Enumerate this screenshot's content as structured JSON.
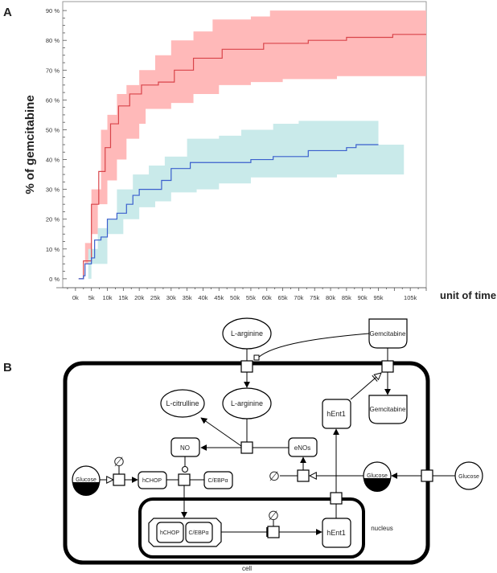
{
  "panels": {
    "a": "A",
    "b": "B"
  },
  "chart_data": {
    "type": "line",
    "title": "",
    "xlabel": "unit of time",
    "ylabel": "% of gemcitabine",
    "xlim": [
      -4,
      110
    ],
    "ylim": [
      -3,
      93
    ],
    "x_unit": "k",
    "xticks": [
      0,
      5,
      10,
      15,
      20,
      25,
      30,
      35,
      40,
      45,
      50,
      55,
      60,
      65,
      70,
      75,
      80,
      85,
      90,
      95,
      105
    ],
    "xtick_labels": [
      "0k",
      "5k",
      "10k",
      "15k",
      "20k",
      "25k",
      "30k",
      "35k",
      "40k",
      "45k",
      "50k",
      "55k",
      "60k",
      "65k",
      "70k",
      "75k",
      "80k",
      "85k",
      "90k",
      "95k",
      "105k"
    ],
    "yticks": [
      0,
      10,
      20,
      30,
      40,
      50,
      60,
      70,
      80,
      90
    ],
    "ytick_labels": [
      "0 %",
      "10 %",
      "20 %",
      "30 %",
      "40 %",
      "50 %",
      "60 %",
      "70 %",
      "80 %",
      "90 %"
    ],
    "grid": false,
    "series": [
      {
        "name": "red",
        "line_color": "#d9444a",
        "band_color": "#ffb9b9",
        "median": [
          [
            1,
            0
          ],
          [
            2.5,
            6
          ],
          [
            5,
            25
          ],
          [
            7.3,
            36
          ],
          [
            9.3,
            44
          ],
          [
            11,
            52
          ],
          [
            13.5,
            58
          ],
          [
            17,
            62
          ],
          [
            20.7,
            65
          ],
          [
            26,
            66
          ],
          [
            31,
            70
          ],
          [
            37,
            74
          ],
          [
            46,
            77
          ],
          [
            59,
            79
          ],
          [
            73,
            80
          ],
          [
            85,
            81
          ],
          [
            99.5,
            82
          ],
          [
            110,
            82
          ]
        ],
        "upper": [
          [
            1,
            0
          ],
          [
            3,
            12
          ],
          [
            5,
            30
          ],
          [
            8,
            50
          ],
          [
            10,
            55
          ],
          [
            13,
            62
          ],
          [
            16,
            65
          ],
          [
            20,
            70
          ],
          [
            25,
            75
          ],
          [
            30,
            80
          ],
          [
            37,
            83
          ],
          [
            43,
            87
          ],
          [
            55,
            88
          ],
          [
            61,
            90
          ],
          [
            103,
            90
          ],
          [
            110,
            88
          ]
        ],
        "lower": [
          [
            1,
            0
          ],
          [
            3,
            5
          ],
          [
            5,
            15
          ],
          [
            7,
            25
          ],
          [
            10,
            33
          ],
          [
            13,
            40
          ],
          [
            16,
            47
          ],
          [
            20,
            52
          ],
          [
            22,
            57
          ],
          [
            30,
            59
          ],
          [
            37,
            62
          ],
          [
            45,
            65
          ],
          [
            55,
            66
          ],
          [
            65,
            67
          ],
          [
            82,
            68
          ],
          [
            110,
            68
          ]
        ]
      },
      {
        "name": "blue",
        "line_color": "#3a5fcd",
        "band_color": "#c9eaea",
        "median": [
          [
            1,
            0
          ],
          [
            2.5,
            1
          ],
          [
            3,
            5
          ],
          [
            5,
            7
          ],
          [
            6,
            13
          ],
          [
            8,
            14
          ],
          [
            10,
            20
          ],
          [
            13,
            22
          ],
          [
            16,
            25
          ],
          [
            18,
            28
          ],
          [
            20,
            30
          ],
          [
            25,
            30
          ],
          [
            27,
            33
          ],
          [
            30,
            37
          ],
          [
            36,
            39
          ],
          [
            50,
            39
          ],
          [
            55,
            40
          ],
          [
            62,
            41
          ],
          [
            73,
            43
          ],
          [
            85,
            44
          ],
          [
            88,
            45
          ],
          [
            95,
            45
          ]
        ],
        "upper": [
          [
            1,
            0
          ],
          [
            4,
            10
          ],
          [
            7,
            17
          ],
          [
            10,
            20
          ],
          [
            13,
            30
          ],
          [
            18,
            35
          ],
          [
            23,
            38
          ],
          [
            28,
            41
          ],
          [
            35,
            47
          ],
          [
            45,
            48
          ],
          [
            52,
            50
          ],
          [
            62,
            52
          ],
          [
            70,
            53
          ],
          [
            92,
            53
          ],
          [
            95,
            45
          ],
          [
            103,
            35
          ]
        ],
        "lower": [
          [
            1,
            0
          ],
          [
            5,
            5
          ],
          [
            10,
            15
          ],
          [
            15,
            20
          ],
          [
            20,
            24
          ],
          [
            25,
            26
          ],
          [
            30,
            29
          ],
          [
            38,
            30
          ],
          [
            45,
            32
          ],
          [
            55,
            34
          ],
          [
            82,
            35
          ],
          [
            103,
            35
          ]
        ]
      }
    ]
  },
  "diagram": {
    "l_arginine_out": "L-arginine",
    "l_arginine_in": "L-arginine",
    "l_citrulline": "L-citrulline",
    "no": "NO",
    "enos": "eNOs",
    "gemcitabine_out": "Gemcitabine",
    "gemcitabine_in": "Gemcitabine",
    "hent1_cyto": "hEnt1",
    "hent1_nuc": "hEnt1",
    "glucose_out": "Glucose",
    "glucose_in_right": "Glucose",
    "glucose_in_left": "Glucose",
    "hchop": "hCHOP",
    "cebpa": "C/EBPα",
    "complex_hchop": "hCHOP",
    "complex_cebpa": "C/EBPα",
    "sink": "∅",
    "nucleus_label": "nucleus",
    "cell_label": "cell"
  }
}
